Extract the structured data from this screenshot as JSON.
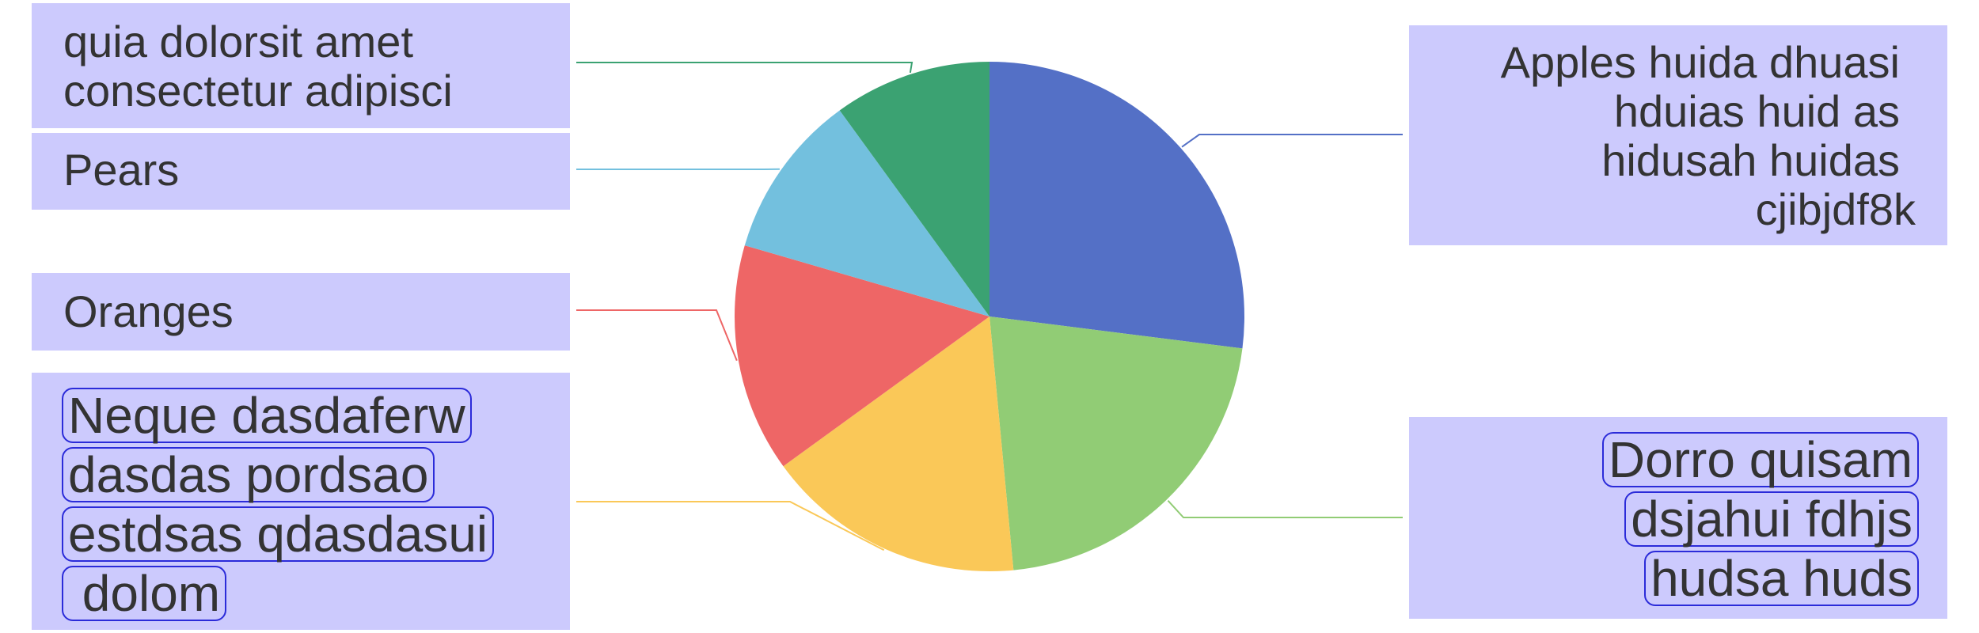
{
  "chart_data": {
    "type": "pie",
    "slices": [
      {
        "label": "Apples huida dhuasi hduias huid as hidusah huidas cjibjdf8k",
        "value": 27,
        "color": "#5470c6"
      },
      {
        "label": "Dorro quisam dsjahui fdhjs hudsa huds",
        "value": 21.5,
        "color": "#91cc75"
      },
      {
        "label": "Neque dasdaferw dasdas pordsao estdsas qdasdasui dolom",
        "value": 16.5,
        "color": "#fac858"
      },
      {
        "label": "Oranges",
        "value": 14.5,
        "color": "#ee6666"
      },
      {
        "label": "Pears",
        "value": 10.5,
        "color": "#73c0de"
      },
      {
        "label": "quia dolorsit amet consectetur adipisci",
        "value": 10,
        "color": "#3ba272"
      }
    ]
  },
  "labels": {
    "quia": [
      "quia dolorsit amet",
      "consectetur adipisci"
    ],
    "pears": "Pears",
    "oranges": "Oranges",
    "neque": [
      "Neque dasdaferw",
      "dasdas pordsao",
      "estdsas qdasdasui",
      " dolom"
    ],
    "apples": [
      "Apples huida dhuasi",
      "hduias huid as",
      "hidusah huidas",
      "cjibjdf8k"
    ],
    "dorro": [
      "Dorro quisam",
      "dsjahui fdhjs",
      "hudsa huds"
    ]
  }
}
